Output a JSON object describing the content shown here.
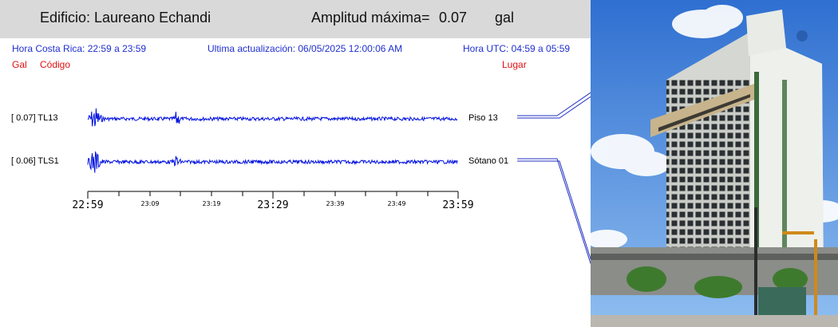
{
  "header": {
    "building": "Edificio: Laureano Echandi",
    "amplitude_label": "Amplitud máxima=",
    "amplitude_value": "0.07",
    "amplitude_unit": "gal"
  },
  "info": {
    "local_time": "Hora Costa Rica:    22:59 a 23:59",
    "last_update": "Ultima actualización:  06/05/2025 12:00:06 AM",
    "utc_time": "Hora UTC:    04:59 a 05:59"
  },
  "columns": {
    "gal": "Gal",
    "code": "Código",
    "place": "Lugar"
  },
  "traces": [
    {
      "amplitude": "[   0.07] TL13",
      "location": "Piso 13"
    },
    {
      "amplitude": "[   0.06] TLS1",
      "location": "Sótano 01"
    }
  ],
  "axis": {
    "major": [
      "22:59",
      "23:29",
      "23:59"
    ],
    "minor": [
      "23:09",
      "23:19",
      "23:39",
      "23:49"
    ]
  },
  "colors": {
    "trace": "#0010e0",
    "info_text": "#1f2fd0",
    "red_text": "#e01010",
    "header_bg": "#d9d9d9"
  },
  "photo": {
    "description_icon": "building-photo"
  }
}
